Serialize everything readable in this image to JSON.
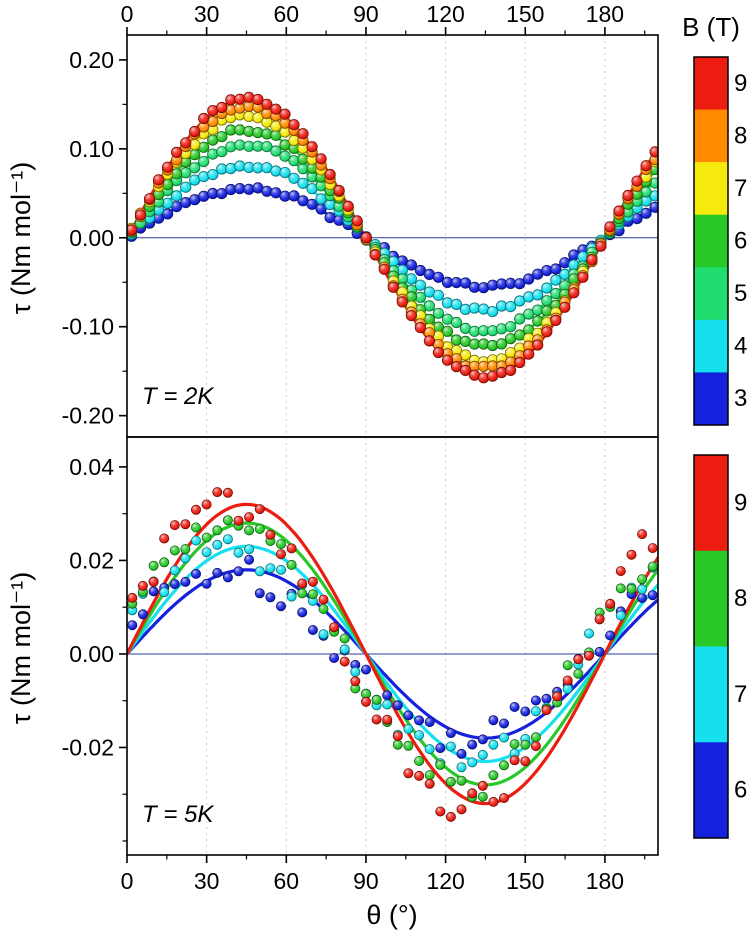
{
  "figure": {
    "xlabel": "θ (°)",
    "ylabel": "τ (Nm mol⁻¹)",
    "colorbar_title": "B (T)"
  },
  "chart_data": [
    {
      "type": "line+scatter",
      "annotation": "T = 2K",
      "temperature": "2 K",
      "xlabel": "θ (°)",
      "ylabel": "τ (Nm mol⁻¹)",
      "xlim": [
        0,
        200
      ],
      "ylim": [
        -0.224,
        0.228
      ],
      "xticks": [
        0,
        30,
        60,
        90,
        120,
        150,
        180
      ],
      "xtick_labels": [
        "0",
        "30",
        "60",
        "90",
        "120",
        "150",
        "180"
      ],
      "yticks": [
        0.2,
        0.1,
        0,
        -0.1,
        -0.2
      ],
      "ytick_labels": [
        "0.20",
        "0.10",
        "0.00",
        "-0.10",
        "-0.20"
      ],
      "x_minor_step": 15,
      "y_minor_step": 0.05,
      "grid": "vertical-dotted-at-major-xticks",
      "model": "tau(theta) = A * sin(2*theta)",
      "scatter": {
        "start_deg": 1.7,
        "step_deg": 3.4,
        "noise": 0.0025,
        "phase_deg": 0,
        "radius": 5.2
      },
      "series": [
        {
          "name": "3 T",
          "B": 3,
          "color": "#1522dd",
          "amplitude": 0.055
        },
        {
          "name": "4 T",
          "B": 4,
          "color": "#16dfee",
          "amplitude": 0.081
        },
        {
          "name": "5 T",
          "B": 5,
          "color": "#20dd70",
          "amplitude": 0.104
        },
        {
          "name": "6 T",
          "B": 6,
          "color": "#28c828",
          "amplitude": 0.122
        },
        {
          "name": "7 T",
          "B": 7,
          "color": "#f6e90c",
          "amplitude": 0.137
        },
        {
          "name": "8 T",
          "B": 8,
          "color": "#ff8a00",
          "amplitude": 0.147
        },
        {
          "name": "9 T",
          "B": 9,
          "color": "#ec1c10",
          "amplitude": 0.156
        }
      ],
      "colorbar": {
        "labels": [
          "9",
          "8",
          "7",
          "6",
          "5",
          "4",
          "3"
        ],
        "colors": [
          "#ec1c10",
          "#ff8a00",
          "#f6e90c",
          "#28c828",
          "#20dd70",
          "#16dfee",
          "#1522dd"
        ]
      }
    },
    {
      "type": "line+scatter",
      "annotation": "T = 5K",
      "temperature": "5 K",
      "xlabel": "θ (°)",
      "ylabel": "τ (Nm mol⁻¹)",
      "xlim": [
        0,
        200
      ],
      "ylim": [
        -0.043,
        0.0464
      ],
      "xticks": [
        0,
        30,
        60,
        90,
        120,
        150,
        180
      ],
      "xtick_labels": [
        "0",
        "30",
        "60",
        "90",
        "120",
        "150",
        "180"
      ],
      "yticks": [
        0.04,
        0.02,
        0,
        -0.02
      ],
      "ytick_labels": [
        "0.04",
        "0.02",
        "0.00",
        "-0.02"
      ],
      "x_minor_step": 15,
      "y_minor_step": 0.01,
      "grid": "vertical-dotted-at-major-xticks",
      "model": "tau(theta) = A * sin(2*theta)",
      "scatter": {
        "start_deg": 2,
        "step_deg": 4,
        "noise": 0.0035,
        "phase_deg": 8,
        "radius": 4.6
      },
      "series": [
        {
          "name": "6 T",
          "B": 6,
          "color": "#1522dd",
          "amplitude": 0.018
        },
        {
          "name": "7 T",
          "B": 7,
          "color": "#16dfee",
          "amplitude": 0.023
        },
        {
          "name": "8 T",
          "B": 8,
          "color": "#28c828",
          "amplitude": 0.028
        },
        {
          "name": "9 T",
          "B": 9,
          "color": "#ec1c10",
          "amplitude": 0.032
        }
      ],
      "colorbar": {
        "labels": [
          "9",
          "8",
          "7",
          "6"
        ],
        "colors": [
          "#ec1c10",
          "#28c828",
          "#16dfee",
          "#1522dd"
        ]
      }
    }
  ]
}
